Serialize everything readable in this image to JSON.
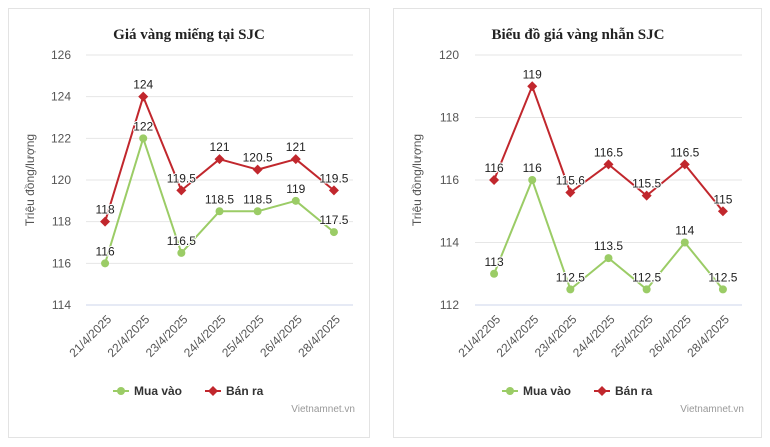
{
  "chart_data": [
    {
      "type": "line",
      "title": "Giá vàng miếng tại SJC",
      "ylabel": "Triệu đồng/lượng",
      "categories": [
        "21/4/2025",
        "22/4/2025",
        "23/4/2025",
        "24/4/2025",
        "25/4/2025",
        "26/4/2025",
        "28/4/2025"
      ],
      "ylim": [
        114,
        126
      ],
      "yticks": [
        114,
        116,
        118,
        120,
        122,
        124,
        126
      ],
      "grid": true,
      "legend": "bottom",
      "credit": "Vietnamnet.vn",
      "series": [
        {
          "name": "Mua vào",
          "color": "#9bcc66",
          "marker": "circle",
          "values": [
            116,
            122,
            116.5,
            118.5,
            118.5,
            119,
            117.5
          ]
        },
        {
          "name": "Bán ra",
          "color": "#c1272d",
          "marker": "diamond",
          "values": [
            118,
            124,
            119.5,
            121,
            120.5,
            121,
            119.5
          ]
        }
      ]
    },
    {
      "type": "line",
      "title": "Biểu đồ giá vàng nhẫn SJC",
      "ylabel": "Triệu đồng/lượng",
      "categories": [
        "21/4/2205",
        "22/4/2025",
        "23/4/2025",
        "24/4/2025",
        "25/4/2025",
        "26/4/2025",
        "28/4/2025"
      ],
      "ylim": [
        112,
        120
      ],
      "yticks": [
        112,
        114,
        116,
        118,
        120
      ],
      "grid": true,
      "legend": "bottom",
      "credit": "Vietnamnet.vn",
      "series": [
        {
          "name": "Mua vào",
          "color": "#9bcc66",
          "marker": "circle",
          "values": [
            113,
            116,
            112.5,
            113.5,
            112.5,
            114,
            112.5
          ]
        },
        {
          "name": "Bán ra",
          "color": "#c1272d",
          "marker": "diamond",
          "values": [
            116,
            119,
            115.6,
            116.5,
            115.5,
            116.5,
            115
          ]
        }
      ]
    }
  ]
}
